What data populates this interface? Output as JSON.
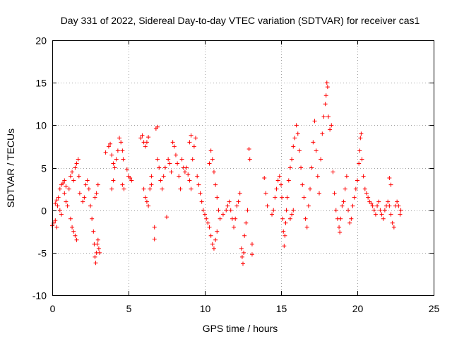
{
  "chart_data": {
    "type": "scatter",
    "title": "Day 331 of 2022, Sidereal Day-to-day VTEC variation (SDTVAR) for receiver cas1",
    "xlabel": "GPS time / hours",
    "ylabel": "SDTVAR / TECUs",
    "xlim": [
      0,
      25
    ],
    "ylim": [
      -10,
      20
    ],
    "x_ticks": [
      0,
      5,
      10,
      15,
      20,
      25
    ],
    "y_ticks": [
      -10,
      -5,
      0,
      5,
      10,
      15,
      20
    ],
    "x_tick_labels": [
      "0",
      "5",
      "10",
      "15",
      "20",
      "25"
    ],
    "y_tick_labels": [
      "-10",
      "-5",
      "0",
      "5",
      "10",
      "15",
      "20"
    ],
    "grid": true,
    "marker": "+",
    "color": "#ff0000",
    "series": [
      {
        "name": "SDTVAR",
        "segments": [
          [
            0.0,
            -1.8
          ],
          [
            0.1,
            -1.5
          ],
          [
            0.2,
            -1.2
          ],
          [
            0.3,
            -2.0
          ],
          [
            0.35,
            0.5
          ],
          [
            0.4,
            1.5
          ],
          [
            0.5,
            2.5
          ],
          [
            0.6,
            3.0
          ],
          [
            0.7,
            3.2
          ],
          [
            0.8,
            2.0
          ],
          [
            0.9,
            1.0
          ],
          [
            1.0,
            0.5
          ],
          [
            1.1,
            2.5
          ],
          [
            1.2,
            4.0
          ],
          [
            1.3,
            4.5
          ],
          [
            1.4,
            3.5
          ],
          [
            1.5,
            5.0
          ],
          [
            1.6,
            5.5
          ],
          [
            1.7,
            6.0
          ],
          [
            1.75,
            4.0
          ],
          [
            1.8,
            2.0
          ],
          [
            1.2,
            -1.0
          ],
          [
            1.3,
            -2.0
          ],
          [
            1.4,
            -2.5
          ],
          [
            1.5,
            -3.0
          ],
          [
            1.6,
            -3.5
          ],
          [
            0.2,
            0.8
          ],
          [
            0.3,
            1.2
          ],
          [
            0.5,
            0.0
          ],
          [
            0.6,
            -0.5
          ],
          [
            0.8,
            3.5
          ],
          [
            0.9,
            2.8
          ],
          [
            2.0,
            1.0
          ],
          [
            2.1,
            1.5
          ],
          [
            2.2,
            3.0
          ],
          [
            2.3,
            3.5
          ],
          [
            2.4,
            2.5
          ],
          [
            2.5,
            0.5
          ],
          [
            2.6,
            -1.0
          ],
          [
            2.7,
            -2.5
          ],
          [
            2.75,
            -4.0
          ],
          [
            2.8,
            -5.5
          ],
          [
            2.85,
            -6.2
          ],
          [
            2.9,
            -5.0
          ],
          [
            2.95,
            -4.0
          ],
          [
            3.0,
            -3.5
          ],
          [
            3.05,
            -4.5
          ],
          [
            3.1,
            -5.0
          ],
          [
            2.8,
            1.5
          ],
          [
            2.9,
            2.0
          ],
          [
            3.0,
            3.0
          ],
          [
            3.5,
            6.8
          ],
          [
            3.7,
            7.5
          ],
          [
            3.8,
            7.8
          ],
          [
            3.9,
            6.5
          ],
          [
            4.0,
            5.5
          ],
          [
            4.1,
            5.0
          ],
          [
            4.2,
            6.0
          ],
          [
            4.3,
            7.0
          ],
          [
            4.4,
            8.5
          ],
          [
            4.5,
            8.0
          ],
          [
            4.6,
            7.0
          ],
          [
            4.65,
            6.0
          ],
          [
            3.9,
            2.5
          ],
          [
            4.0,
            3.5
          ],
          [
            4.6,
            3.0
          ],
          [
            4.7,
            2.5
          ],
          [
            4.9,
            4.8
          ],
          [
            5.0,
            4.0
          ],
          [
            5.1,
            3.8
          ],
          [
            5.2,
            3.5
          ],
          [
            5.8,
            8.5
          ],
          [
            5.9,
            8.8
          ],
          [
            6.0,
            8.0
          ],
          [
            6.1,
            7.5
          ],
          [
            6.2,
            8.0
          ],
          [
            6.3,
            8.6
          ],
          [
            6.0,
            2.5
          ],
          [
            6.1,
            1.5
          ],
          [
            6.2,
            1.0
          ],
          [
            6.3,
            0.5
          ],
          [
            6.4,
            2.5
          ],
          [
            6.5,
            4.0
          ],
          [
            6.5,
            3.0
          ],
          [
            6.7,
            -2.0
          ],
          [
            6.7,
            -3.4
          ],
          [
            6.8,
            9.6
          ],
          [
            6.9,
            9.8
          ],
          [
            6.9,
            6.0
          ],
          [
            7.0,
            5.0
          ],
          [
            7.1,
            3.5
          ],
          [
            7.2,
            2.5
          ],
          [
            7.3,
            4.0
          ],
          [
            7.4,
            5.0
          ],
          [
            7.5,
            -0.8
          ],
          [
            7.6,
            6.0
          ],
          [
            7.7,
            5.5
          ],
          [
            7.8,
            4.5
          ],
          [
            7.9,
            8.0
          ],
          [
            8.0,
            7.5
          ],
          [
            8.1,
            6.5
          ],
          [
            8.2,
            5.5
          ],
          [
            8.3,
            4.0
          ],
          [
            8.4,
            2.5
          ],
          [
            8.5,
            6.0
          ],
          [
            8.6,
            5.0
          ],
          [
            8.7,
            4.5
          ],
          [
            8.8,
            5.0
          ],
          [
            8.9,
            4.2
          ],
          [
            9.0,
            3.5
          ],
          [
            9.1,
            2.5
          ],
          [
            9.2,
            6.0
          ],
          [
            9.3,
            7.5
          ],
          [
            9.4,
            8.5
          ],
          [
            9.0,
            8.0
          ],
          [
            9.1,
            8.8
          ],
          [
            9.5,
            4.0
          ],
          [
            9.6,
            3.0
          ],
          [
            9.7,
            2.0
          ],
          [
            9.8,
            1.0
          ],
          [
            9.9,
            0.0
          ],
          [
            10.0,
            -0.5
          ],
          [
            10.1,
            -1.0
          ],
          [
            10.2,
            -1.5
          ],
          [
            10.3,
            -2.0
          ],
          [
            10.4,
            -3.0
          ],
          [
            10.5,
            -4.0
          ],
          [
            10.6,
            -4.5
          ],
          [
            10.7,
            -3.5
          ],
          [
            10.8,
            -2.5
          ],
          [
            10.9,
            0.0
          ],
          [
            10.3,
            5.5
          ],
          [
            10.4,
            7.0
          ],
          [
            10.5,
            6.0
          ],
          [
            10.6,
            4.5
          ],
          [
            10.7,
            3.0
          ],
          [
            10.8,
            1.5
          ],
          [
            11.0,
            -1.0
          ],
          [
            11.2,
            -0.5
          ],
          [
            11.4,
            0.0
          ],
          [
            11.5,
            0.5
          ],
          [
            11.6,
            1.0
          ],
          [
            11.7,
            0.0
          ],
          [
            11.8,
            -1.0
          ],
          [
            11.9,
            -2.0
          ],
          [
            12.0,
            -1.0
          ],
          [
            12.1,
            0.5
          ],
          [
            12.2,
            1.0
          ],
          [
            12.3,
            2.0
          ],
          [
            12.4,
            -4.5
          ],
          [
            12.45,
            -5.5
          ],
          [
            12.5,
            -6.3
          ],
          [
            12.55,
            -5.0
          ],
          [
            12.6,
            -3.0
          ],
          [
            12.7,
            -1.5
          ],
          [
            12.8,
            0.0
          ],
          [
            12.9,
            7.2
          ],
          [
            12.95,
            6.0
          ],
          [
            13.1,
            -4.0
          ],
          [
            13.1,
            -5.2
          ],
          [
            13.9,
            3.8
          ],
          [
            14.0,
            2.0
          ],
          [
            14.1,
            0.5
          ],
          [
            14.4,
            -0.5
          ],
          [
            14.5,
            0.0
          ],
          [
            14.6,
            1.5
          ],
          [
            14.7,
            2.5
          ],
          [
            14.8,
            3.5
          ],
          [
            14.9,
            4.0
          ],
          [
            15.0,
            3.0
          ],
          [
            15.05,
            1.5
          ],
          [
            15.1,
            -1.0
          ],
          [
            15.15,
            -2.5
          ],
          [
            15.2,
            -4.2
          ],
          [
            15.25,
            -3.0
          ],
          [
            15.3,
            -1.5
          ],
          [
            15.35,
            0.0
          ],
          [
            15.4,
            1.5
          ],
          [
            15.5,
            3.5
          ],
          [
            15.6,
            5.0
          ],
          [
            15.7,
            6.0
          ],
          [
            15.8,
            7.5
          ],
          [
            15.9,
            8.5
          ],
          [
            16.0,
            10.0
          ],
          [
            16.1,
            9.0
          ],
          [
            16.2,
            7.0
          ],
          [
            15.6,
            -1.0
          ],
          [
            15.7,
            -0.5
          ],
          [
            15.8,
            0.0
          ],
          [
            16.3,
            5.0
          ],
          [
            16.4,
            3.0
          ],
          [
            16.5,
            1.5
          ],
          [
            16.6,
            -1.0
          ],
          [
            16.7,
            -2.0
          ],
          [
            16.8,
            0.5
          ],
          [
            16.9,
            2.5
          ],
          [
            17.0,
            5.0
          ],
          [
            17.1,
            8.0
          ],
          [
            17.2,
            10.5
          ],
          [
            17.3,
            7.0
          ],
          [
            17.4,
            4.0
          ],
          [
            17.5,
            2.0
          ],
          [
            17.6,
            6.0
          ],
          [
            17.7,
            9.0
          ],
          [
            17.8,
            11.0
          ],
          [
            17.9,
            12.5
          ],
          [
            17.95,
            13.5
          ],
          [
            18.0,
            15.0
          ],
          [
            18.05,
            14.5
          ],
          [
            18.1,
            11.0
          ],
          [
            18.2,
            9.5
          ],
          [
            18.3,
            10.0
          ],
          [
            18.4,
            4.5
          ],
          [
            18.5,
            2.0
          ],
          [
            18.6,
            0.0
          ],
          [
            18.7,
            -1.0
          ],
          [
            18.8,
            -2.0
          ],
          [
            18.85,
            -2.6
          ],
          [
            18.9,
            -1.0
          ],
          [
            19.0,
            0.5
          ],
          [
            19.1,
            1.0
          ],
          [
            19.2,
            2.5
          ],
          [
            19.3,
            4.0
          ],
          [
            19.4,
            0.0
          ],
          [
            19.5,
            -1.5
          ],
          [
            19.6,
            -1.0
          ],
          [
            19.7,
            0.5
          ],
          [
            19.8,
            1.5
          ],
          [
            19.9,
            2.5
          ],
          [
            20.0,
            3.5
          ],
          [
            20.1,
            5.5
          ],
          [
            20.15,
            7.0
          ],
          [
            20.2,
            8.5
          ],
          [
            20.25,
            9.0
          ],
          [
            20.3,
            6.0
          ],
          [
            20.4,
            4.0
          ],
          [
            20.5,
            2.5
          ],
          [
            20.6,
            2.0
          ],
          [
            20.7,
            1.5
          ],
          [
            20.8,
            1.0
          ],
          [
            20.9,
            0.8
          ],
          [
            21.0,
            0.5
          ],
          [
            21.1,
            0.0
          ],
          [
            21.2,
            -0.5
          ],
          [
            21.3,
            0.5
          ],
          [
            21.4,
            1.0
          ],
          [
            21.5,
            0.0
          ],
          [
            21.6,
            -0.5
          ],
          [
            21.7,
            -1.0
          ],
          [
            21.8,
            0.0
          ],
          [
            21.9,
            0.5
          ],
          [
            22.0,
            1.0
          ],
          [
            22.1,
            0.5
          ],
          [
            22.2,
            -0.5
          ],
          [
            22.3,
            -1.5
          ],
          [
            22.4,
            -2.0
          ],
          [
            22.5,
            0.5
          ],
          [
            22.6,
            1.0
          ],
          [
            22.7,
            0.5
          ],
          [
            22.8,
            -0.5
          ],
          [
            22.85,
            0.0
          ],
          [
            22.2,
            3.0
          ],
          [
            22.1,
            3.8
          ]
        ]
      }
    ]
  }
}
